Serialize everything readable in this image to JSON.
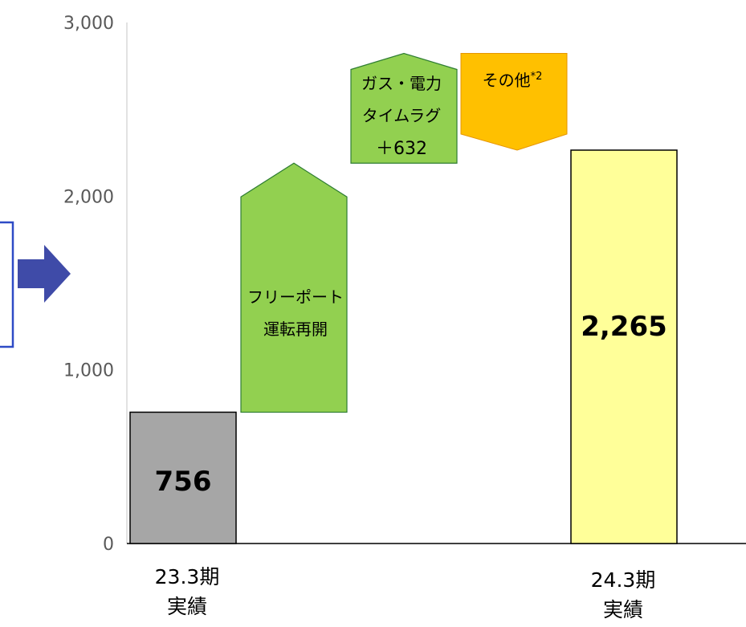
{
  "chart_data": {
    "type": "waterfall",
    "ylim": [
      0,
      3000
    ],
    "yticks": [
      "0",
      "1,000",
      "2,000",
      "3,000"
    ],
    "bars": [
      {
        "key": "start",
        "kind": "total",
        "category_line1": "23.3期",
        "category_line2": "実績",
        "value": 756,
        "value_label": "756",
        "color": "#A6A6A6"
      },
      {
        "key": "freeport",
        "kind": "increase",
        "label_lines": [
          "フリーポート",
          "運転再開"
        ],
        "base": 756,
        "end": 2190,
        "color": "#92D050"
      },
      {
        "key": "gas",
        "kind": "increase",
        "label_lines": [
          "ガス・電力",
          "タイムラグ",
          "＋632"
        ],
        "base": 2190,
        "end": 2822,
        "color": "#92D050"
      },
      {
        "key": "other",
        "kind": "decrease",
        "label": "その他",
        "label_sup": "*2",
        "base": 2822,
        "end": 2265,
        "color": "#FFC000"
      },
      {
        "key": "end",
        "kind": "total",
        "category_line1": "24.3期",
        "category_line2": "実績",
        "value": 2265,
        "value_label": "2,265",
        "color": "#FFFF99"
      }
    ]
  },
  "colors": {
    "arrow": "#3F4BA8",
    "bracket": "#2E4BC6",
    "axis": "#000000",
    "yaxis": "#D9D9D9"
  }
}
